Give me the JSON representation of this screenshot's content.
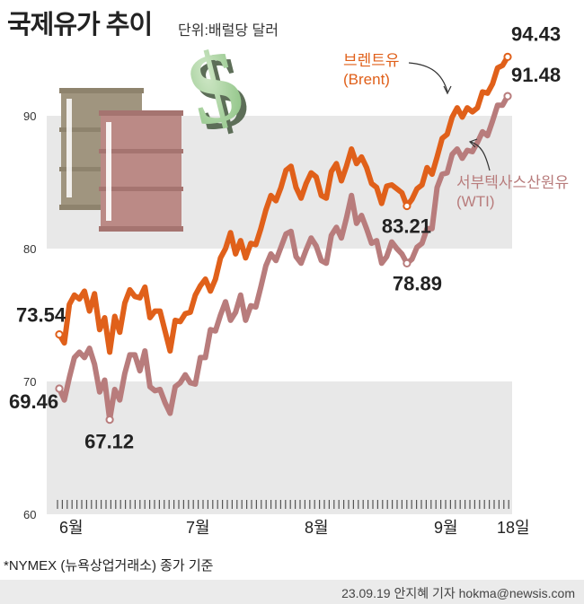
{
  "title": "국제유가 추이",
  "unit": "단위:배럴당 달러",
  "footnote": "*NYMEX (뉴욕상업거래소) 종가 기준",
  "credit": "23.09.19 안지혜 기자 hokma@newsis.com",
  "colors": {
    "brent": "#e0601a",
    "wti": "#b87c7c",
    "band": "#e8e8e8",
    "barrel1": "#a0957f",
    "barrel2": "#bb8a86",
    "dollar": "#a6d49a"
  },
  "icons": [
    "oil-barrel-icon",
    "oil-barrel-icon",
    "dollar-sign-icon"
  ],
  "chart_data": {
    "type": "line",
    "title": "국제유가 추이",
    "ylim": [
      60,
      97
    ],
    "yticks": [
      60,
      70,
      80,
      90
    ],
    "grid": "alternating bands 60-70, 80-90",
    "x_labels": [
      "6월",
      "7월",
      "8월",
      "9월",
      "18일"
    ],
    "series": [
      {
        "name": "브렌트유 (Brent)",
        "color": "#e0601a",
        "label_lines": [
          "브렌트유",
          "(Brent)"
        ],
        "values": [
          73.54,
          72.9,
          75.8,
          76.5,
          76.2,
          76.8,
          75.3,
          76.6,
          73.9,
          74.8,
          72.2,
          74.9,
          73.7,
          75.9,
          76.9,
          76.4,
          76.3,
          77.1,
          74.8,
          75.3,
          75.3,
          73.8,
          72.3,
          74.6,
          74.5,
          75.1,
          75.2,
          76.5,
          77.2,
          77.7,
          76.8,
          77.7,
          79.3,
          80.0,
          81.2,
          79.6,
          80.6,
          79.3,
          80.4,
          80.3,
          81.5,
          82.9,
          84.0,
          83.6,
          84.6,
          85.9,
          86.2,
          84.6,
          83.8,
          84.9,
          85.7,
          85.4,
          84.0,
          83.8,
          85.8,
          86.4,
          85.1,
          86.2,
          87.5,
          86.4,
          86.9,
          86.1,
          84.9,
          84.6,
          83.4,
          84.7,
          84.8,
          84.5,
          84.2,
          83.21,
          83.7,
          84.5,
          84.8,
          86.1,
          85.6,
          86.9,
          88.3,
          88.6,
          89.9,
          90.6,
          89.9,
          90.6,
          90.3,
          90.6,
          91.8,
          91.7,
          92.4,
          93.6,
          93.8,
          94.43
        ],
        "labels": [
          {
            "value": "73.54",
            "index": 0
          },
          {
            "value": "83.21",
            "index": 69
          },
          {
            "value": "94.43",
            "index": 89
          }
        ]
      },
      {
        "name": "서부텍사스산원유 (WTI)",
        "color": "#b87c7c",
        "label_lines": [
          "서부텍사스산원유",
          "(WTI)"
        ],
        "values": [
          69.46,
          68.6,
          70.3,
          71.8,
          72.2,
          71.8,
          72.5,
          71.3,
          69.2,
          70.1,
          67.12,
          69.4,
          68.6,
          70.6,
          72.0,
          72.0,
          70.8,
          72.3,
          69.6,
          69.3,
          69.4,
          68.4,
          67.6,
          69.6,
          69.9,
          70.5,
          69.9,
          69.8,
          71.8,
          71.8,
          73.9,
          73.8,
          75.0,
          76.0,
          74.6,
          75.2,
          76.5,
          74.6,
          75.7,
          75.6,
          77.1,
          78.7,
          79.6,
          79.1,
          80.1,
          81.1,
          81.3,
          79.4,
          78.9,
          79.9,
          80.8,
          80.2,
          79.1,
          78.9,
          81.0,
          81.6,
          80.8,
          82.3,
          84.0,
          81.9,
          82.5,
          81.5,
          80.4,
          80.6,
          78.9,
          79.4,
          80.5,
          80.0,
          79.6,
          78.89,
          79.2,
          80.1,
          80.4,
          81.5,
          81.5,
          84.6,
          85.6,
          85.7,
          87.1,
          87.5,
          86.8,
          87.4,
          87.3,
          88.0,
          88.8,
          88.5,
          89.6,
          90.8,
          90.8,
          91.48
        ],
        "labels": [
          {
            "value": "69.46",
            "index": 0
          },
          {
            "value": "67.12",
            "index": 10
          },
          {
            "value": "78.89",
            "index": 69
          },
          {
            "value": "91.48",
            "index": 89
          }
        ]
      }
    ]
  }
}
